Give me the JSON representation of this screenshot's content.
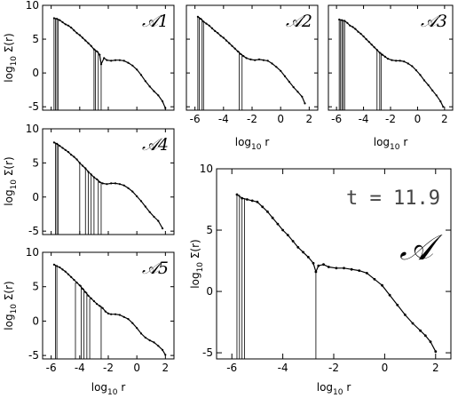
{
  "figure": {
    "annotation": "t = 11.9"
  },
  "axes_text": {
    "xlabel_main": "log",
    "xlabel_sub": "10",
    "xlabel_tail": " r",
    "ylabel_main": "log",
    "ylabel_sub": "10",
    "ylabel_tail": " Σ(r)"
  },
  "chart_data": [
    {
      "type": "line",
      "id": "A1",
      "label": "𝒜1",
      "xlim": [
        -6.6,
        2.6
      ],
      "ylim": [
        -5.5,
        10
      ],
      "xticks": [
        -6,
        -4,
        -2,
        0,
        2
      ],
      "yticks": [
        -5,
        0,
        5,
        10
      ],
      "x_ticklabels_shown": false,
      "y_ticklabels_shown": true,
      "curve": [
        [
          -5.8,
          8.1
        ],
        [
          -5.6,
          8.0
        ],
        [
          -5.4,
          7.8
        ],
        [
          -5.2,
          7.5
        ],
        [
          -5.0,
          7.2
        ],
        [
          -4.8,
          7.0
        ],
        [
          -4.6,
          6.7
        ],
        [
          -4.4,
          6.3
        ],
        [
          -4.2,
          5.9
        ],
        [
          -4.0,
          5.6
        ],
        [
          -3.8,
          5.2
        ],
        [
          -3.6,
          4.8
        ],
        [
          -3.4,
          4.4
        ],
        [
          -3.2,
          4.0
        ],
        [
          -3.0,
          3.5
        ],
        [
          -2.8,
          3.2
        ],
        [
          -2.6,
          2.7
        ],
        [
          -2.5,
          1.3
        ],
        [
          -2.3,
          2.2
        ],
        [
          -2.1,
          1.9
        ],
        [
          -1.8,
          1.8
        ],
        [
          -1.5,
          1.9
        ],
        [
          -1.2,
          1.9
        ],
        [
          -0.9,
          1.8
        ],
        [
          -0.6,
          1.5
        ],
        [
          -0.3,
          1.1
        ],
        [
          0.0,
          0.5
        ],
        [
          0.3,
          -0.3
        ],
        [
          0.6,
          -1.2
        ],
        [
          0.9,
          -2.0
        ],
        [
          1.2,
          -2.7
        ],
        [
          1.5,
          -3.3
        ],
        [
          1.8,
          -4.2
        ],
        [
          2.0,
          -5.2
        ]
      ],
      "spikes": [
        -5.8,
        -5.7,
        -5.6,
        -5.5,
        -3.0,
        -2.9,
        -2.7,
        -2.5
      ]
    },
    {
      "type": "line",
      "id": "A2",
      "label": "𝒜2",
      "xlim": [
        -6.6,
        2.6
      ],
      "ylim": [
        -5.5,
        10
      ],
      "xticks": [
        -6,
        -4,
        -2,
        0,
        2
      ],
      "yticks": [
        -5,
        0,
        5,
        10
      ],
      "x_ticklabels_shown": true,
      "y_ticklabels_shown": false,
      "curve": [
        [
          -5.8,
          8.3
        ],
        [
          -5.6,
          8.0
        ],
        [
          -5.4,
          7.6
        ],
        [
          -5.2,
          7.3
        ],
        [
          -5.0,
          7.0
        ],
        [
          -4.8,
          6.6
        ],
        [
          -4.6,
          6.2
        ],
        [
          -4.4,
          5.9
        ],
        [
          -4.2,
          5.5
        ],
        [
          -4.0,
          5.2
        ],
        [
          -3.8,
          4.8
        ],
        [
          -3.6,
          4.4
        ],
        [
          -3.4,
          4.0
        ],
        [
          -3.2,
          3.6
        ],
        [
          -3.0,
          3.2
        ],
        [
          -2.8,
          2.8
        ],
        [
          -2.6,
          2.5
        ],
        [
          -2.4,
          2.2
        ],
        [
          -2.1,
          2.0
        ],
        [
          -1.8,
          1.9
        ],
        [
          -1.5,
          2.0
        ],
        [
          -1.2,
          1.9
        ],
        [
          -0.9,
          1.8
        ],
        [
          -0.6,
          1.4
        ],
        [
          -0.3,
          0.9
        ],
        [
          0.0,
          0.3
        ],
        [
          0.3,
          -0.5
        ],
        [
          0.6,
          -1.3
        ],
        [
          0.9,
          -2.1
        ],
        [
          1.2,
          -2.8
        ],
        [
          1.5,
          -3.5
        ],
        [
          1.7,
          -4.5
        ]
      ],
      "spikes": [
        -5.8,
        -5.7,
        -5.5,
        -5.4,
        -2.9,
        -2.7
      ]
    },
    {
      "type": "line",
      "id": "A3",
      "label": "𝒜3",
      "xlim": [
        -6.6,
        2.6
      ],
      "ylim": [
        -5.5,
        10
      ],
      "xticks": [
        -6,
        -4,
        -2,
        0,
        2
      ],
      "yticks": [
        -5,
        0,
        5,
        10
      ],
      "x_ticklabels_shown": true,
      "y_ticklabels_shown": false,
      "curve": [
        [
          -5.8,
          7.9
        ],
        [
          -5.6,
          7.8
        ],
        [
          -5.4,
          7.7
        ],
        [
          -5.2,
          7.4
        ],
        [
          -5.0,
          7.0
        ],
        [
          -4.8,
          6.8
        ],
        [
          -4.6,
          6.5
        ],
        [
          -4.4,
          6.1
        ],
        [
          -4.2,
          5.8
        ],
        [
          -4.0,
          5.4
        ],
        [
          -3.8,
          5.0
        ],
        [
          -3.6,
          4.6
        ],
        [
          -3.4,
          4.2
        ],
        [
          -3.2,
          3.8
        ],
        [
          -3.0,
          3.4
        ],
        [
          -2.8,
          3.0
        ],
        [
          -2.6,
          2.7
        ],
        [
          -2.4,
          2.4
        ],
        [
          -2.2,
          2.1
        ],
        [
          -1.9,
          1.9
        ],
        [
          -1.6,
          1.8
        ],
        [
          -1.3,
          1.8
        ],
        [
          -1.0,
          1.7
        ],
        [
          -0.7,
          1.4
        ],
        [
          -0.4,
          1.0
        ],
        [
          -0.1,
          0.4
        ],
        [
          0.2,
          -0.3
        ],
        [
          0.5,
          -1.1
        ],
        [
          0.8,
          -1.8
        ],
        [
          1.1,
          -2.6
        ],
        [
          1.4,
          -3.3
        ],
        [
          1.7,
          -4.2
        ],
        [
          1.9,
          -5.0
        ]
      ],
      "spikes": [
        -5.8,
        -5.7,
        -5.6,
        -5.5,
        -5.4,
        -3.0,
        -2.8,
        -2.7
      ]
    },
    {
      "type": "line",
      "id": "A4",
      "label": "𝒜4",
      "xlim": [
        -6.6,
        2.6
      ],
      "ylim": [
        -5.5,
        10
      ],
      "xticks": [
        -6,
        -4,
        -2,
        0,
        2
      ],
      "yticks": [
        -5,
        0,
        5,
        10
      ],
      "x_ticklabels_shown": false,
      "y_ticklabels_shown": true,
      "curve": [
        [
          -5.8,
          8.0
        ],
        [
          -5.6,
          7.8
        ],
        [
          -5.4,
          7.5
        ],
        [
          -5.2,
          7.2
        ],
        [
          -5.0,
          6.9
        ],
        [
          -4.8,
          6.6
        ],
        [
          -4.6,
          6.2
        ],
        [
          -4.4,
          5.9
        ],
        [
          -4.2,
          5.5
        ],
        [
          -4.0,
          5.0
        ],
        [
          -3.8,
          4.6
        ],
        [
          -3.6,
          4.2
        ],
        [
          -3.4,
          3.7
        ],
        [
          -3.2,
          3.3
        ],
        [
          -3.0,
          2.9
        ],
        [
          -2.8,
          2.6
        ],
        [
          -2.6,
          2.2
        ],
        [
          -2.4,
          2.0
        ],
        [
          -2.1,
          1.9
        ],
        [
          -1.8,
          2.0
        ],
        [
          -1.5,
          2.0
        ],
        [
          -1.2,
          1.9
        ],
        [
          -0.9,
          1.7
        ],
        [
          -0.6,
          1.3
        ],
        [
          -0.3,
          0.8
        ],
        [
          0.0,
          0.1
        ],
        [
          0.3,
          -0.6
        ],
        [
          0.6,
          -1.4
        ],
        [
          0.9,
          -2.2
        ],
        [
          1.2,
          -2.9
        ],
        [
          1.5,
          -3.5
        ],
        [
          1.8,
          -4.6
        ]
      ],
      "spikes": [
        -5.7,
        -5.6,
        -5.5,
        -4.0,
        -3.6,
        -3.4,
        -3.2,
        -3.0,
        -2.7,
        -2.5
      ]
    },
    {
      "type": "line",
      "id": "A5",
      "label": "𝒜5",
      "xlim": [
        -6.6,
        2.6
      ],
      "ylim": [
        -5.5,
        10
      ],
      "xticks": [
        -6,
        -4,
        -2,
        0,
        2
      ],
      "yticks": [
        -5,
        0,
        5,
        10
      ],
      "x_ticklabels_shown": true,
      "y_ticklabels_shown": true,
      "curve": [
        [
          -5.8,
          8.2
        ],
        [
          -5.6,
          8.0
        ],
        [
          -5.4,
          7.8
        ],
        [
          -5.2,
          7.5
        ],
        [
          -5.0,
          7.2
        ],
        [
          -4.8,
          6.8
        ],
        [
          -4.6,
          6.4
        ],
        [
          -4.4,
          6.0
        ],
        [
          -4.2,
          5.6
        ],
        [
          -4.0,
          5.2
        ],
        [
          -3.8,
          4.7
        ],
        [
          -3.6,
          4.2
        ],
        [
          -3.4,
          3.7
        ],
        [
          -3.2,
          3.3
        ],
        [
          -3.0,
          2.9
        ],
        [
          -2.8,
          2.5
        ],
        [
          -2.6,
          2.2
        ],
        [
          -2.4,
          1.9
        ],
        [
          -2.2,
          1.4
        ],
        [
          -2.0,
          1.1
        ],
        [
          -1.8,
          1.0
        ],
        [
          -1.5,
          1.0
        ],
        [
          -1.2,
          0.9
        ],
        [
          -0.9,
          0.6
        ],
        [
          -0.6,
          0.3
        ],
        [
          -0.3,
          -0.3
        ],
        [
          0.0,
          -1.0
        ],
        [
          0.3,
          -1.8
        ],
        [
          0.6,
          -2.4
        ],
        [
          0.9,
          -2.8
        ],
        [
          1.2,
          -3.1
        ],
        [
          1.5,
          -3.6
        ],
        [
          1.8,
          -4.2
        ],
        [
          2.0,
          -4.9
        ]
      ],
      "spikes": [
        -5.7,
        -5.6,
        -4.3,
        -3.9,
        -3.7,
        -3.5,
        -3.3,
        -2.5
      ]
    },
    {
      "type": "line",
      "id": "A",
      "label": "𝒜",
      "xlim": [
        -6.6,
        2.6
      ],
      "ylim": [
        -5.5,
        10
      ],
      "xticks": [
        -6,
        -4,
        -2,
        0,
        2
      ],
      "yticks": [
        -5,
        0,
        5,
        10
      ],
      "x_ticklabels_shown": true,
      "y_ticklabels_shown": true,
      "curve": [
        [
          -5.8,
          7.9
        ],
        [
          -5.6,
          7.6
        ],
        [
          -5.4,
          7.5
        ],
        [
          -5.2,
          7.4
        ],
        [
          -5.0,
          7.3
        ],
        [
          -4.8,
          6.9
        ],
        [
          -4.6,
          6.5
        ],
        [
          -4.4,
          6.0
        ],
        [
          -4.2,
          5.5
        ],
        [
          -4.0,
          5.0
        ],
        [
          -3.8,
          4.6
        ],
        [
          -3.6,
          4.1
        ],
        [
          -3.4,
          3.6
        ],
        [
          -3.2,
          3.2
        ],
        [
          -3.0,
          2.8
        ],
        [
          -2.8,
          2.3
        ],
        [
          -2.7,
          1.6
        ],
        [
          -2.6,
          2.1
        ],
        [
          -2.4,
          2.2
        ],
        [
          -2.2,
          2.0
        ],
        [
          -1.9,
          1.9
        ],
        [
          -1.6,
          1.9
        ],
        [
          -1.3,
          1.8
        ],
        [
          -1.0,
          1.7
        ],
        [
          -0.7,
          1.5
        ],
        [
          -0.4,
          1.0
        ],
        [
          -0.1,
          0.5
        ],
        [
          0.2,
          -0.3
        ],
        [
          0.5,
          -1.1
        ],
        [
          0.8,
          -1.9
        ],
        [
          1.1,
          -2.6
        ],
        [
          1.4,
          -3.2
        ],
        [
          1.6,
          -3.6
        ],
        [
          1.8,
          -4.1
        ],
        [
          2.0,
          -4.9
        ]
      ],
      "spikes": [
        -5.8,
        -5.7,
        -5.6,
        -5.5,
        -2.7
      ]
    }
  ]
}
